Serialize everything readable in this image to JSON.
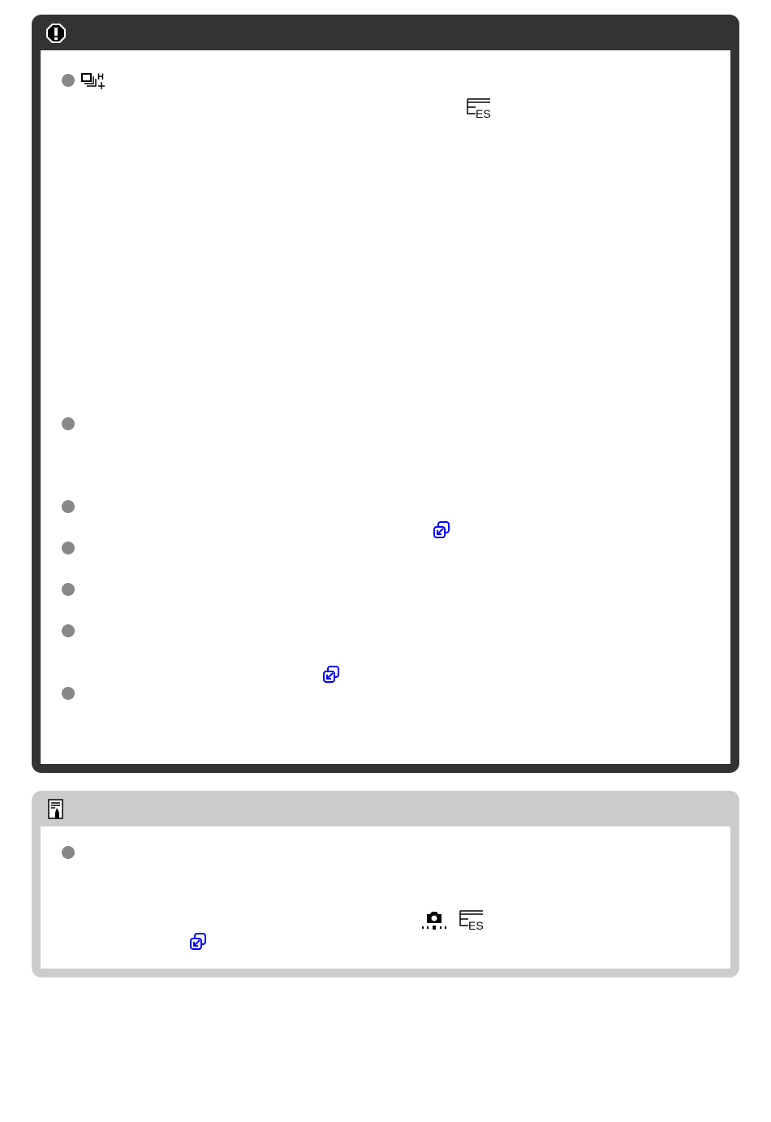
{
  "colors": {
    "caution_frame": "#333333",
    "note_frame": "#cccccc",
    "bullet": "#888888",
    "link_icon": "#0000ff"
  },
  "caution": {
    "header_icon": "caution-exclamation-icon",
    "bullet_count": 7,
    "inline_icons": [
      "high-speed-continuous-plus-icon",
      "electronic-shutter-icon",
      "page-link-icon",
      "page-link-icon"
    ]
  },
  "note": {
    "header_icon": "note-memo-icon",
    "bullet_count": 1,
    "inline_icons": [
      "shooting-settings-camera-icon",
      "electronic-shutter-icon",
      "page-link-icon"
    ]
  }
}
